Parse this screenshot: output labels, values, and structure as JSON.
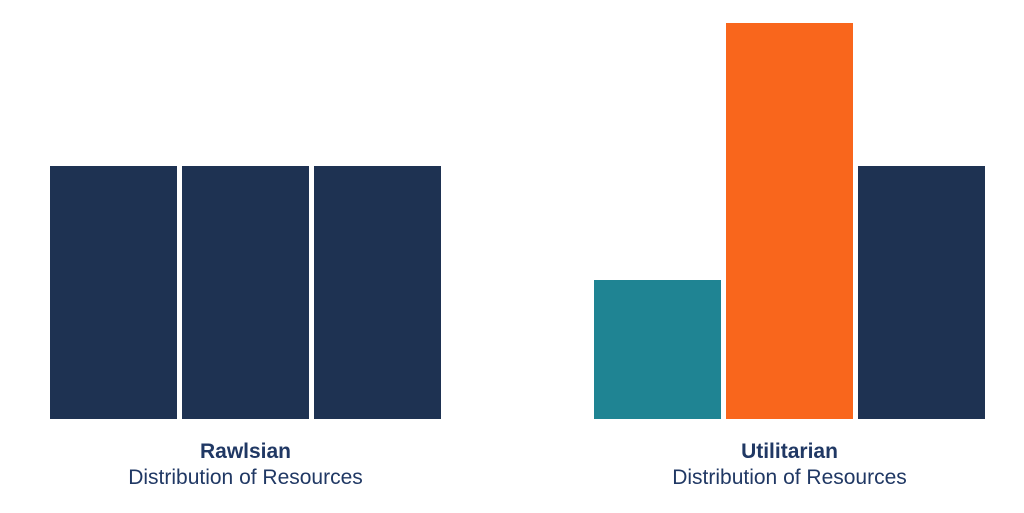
{
  "page": {
    "background": "#FFFFFF"
  },
  "colors": {
    "navy": "#1E3252",
    "teal": "#1F8493",
    "orange": "#F9661C",
    "label_text": "#203864"
  },
  "chart_data": [
    {
      "type": "bar",
      "title": "Rawlsian",
      "subtitle": "Distribution of Resources",
      "values": [
        64,
        64,
        64
      ],
      "bar_colors": [
        "#1E3252",
        "#1E3252",
        "#1E3252"
      ],
      "ylim": [
        0,
        100
      ],
      "xlabel": "",
      "ylabel": "",
      "axes_visible": false,
      "gridlines": false,
      "legend": false,
      "notes": "Three equal-height bars; no axis ticks or data labels shown"
    },
    {
      "type": "bar",
      "title": "Utilitarian",
      "subtitle": "Distribution of Resources",
      "values": [
        35,
        100,
        64
      ],
      "bar_colors": [
        "#1F8493",
        "#F9661C",
        "#1E3252"
      ],
      "ylim": [
        0,
        100
      ],
      "xlabel": "",
      "ylabel": "",
      "axes_visible": false,
      "gridlines": false,
      "legend": false,
      "notes": "Unequal bars (short teal, tall orange, medium navy); no axis ticks or data labels shown"
    }
  ]
}
